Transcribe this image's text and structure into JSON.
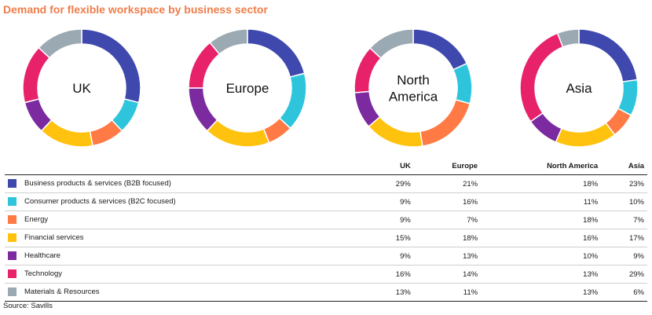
{
  "chart_data": {
    "type": "pie",
    "title": "Demand for flexible workspace by business sector",
    "columns": [
      "UK",
      "Europe",
      "North America",
      "Asia"
    ],
    "categories": [
      "Business products & services (B2B focused)",
      "Consumer products & services (B2C focused)",
      "Energy",
      "Financial services",
      "Healthcare",
      "Technology",
      "Materials & Resources"
    ],
    "colors": [
      "#3f48ad",
      "#2ec5dc",
      "#ff7a45",
      "#ffc20e",
      "#7b2aa0",
      "#e8226a",
      "#9ba9b3"
    ],
    "series": [
      {
        "name": "UK",
        "center_label": [
          "UK"
        ],
        "values": [
          29,
          9,
          9,
          15,
          9,
          16,
          13
        ]
      },
      {
        "name": "Europe",
        "center_label": [
          "Europe"
        ],
        "values": [
          21,
          16,
          7,
          18,
          13,
          14,
          11
        ]
      },
      {
        "name": "North America",
        "center_label": [
          "North",
          "America"
        ],
        "values": [
          18,
          11,
          18,
          16,
          10,
          13,
          13
        ]
      },
      {
        "name": "Asia",
        "center_label": [
          "Asia"
        ],
        "values": [
          23,
          10,
          7,
          17,
          9,
          29,
          6
        ]
      }
    ]
  },
  "source": "Source: Savills"
}
